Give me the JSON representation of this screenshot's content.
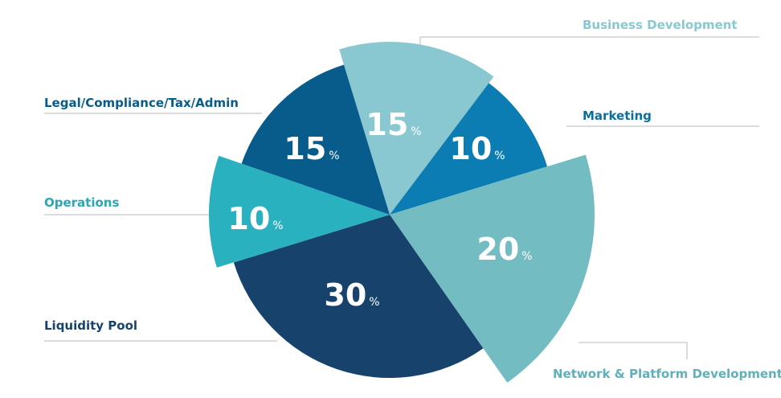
{
  "chart_data": {
    "type": "pie",
    "unit_symbol": "%",
    "slices": [
      {
        "label": "Business Development",
        "value": 15,
        "color": "#89c8d1",
        "label_color": "#89c8d1"
      },
      {
        "label": "Marketing",
        "value": 10,
        "color": "#0c7db3",
        "label_color": "#0c6e9c"
      },
      {
        "label": "Network & Platform Development",
        "value": 20,
        "color": "#72bcc2",
        "label_color": "#5fb0b8"
      },
      {
        "label": "Liquidity Pool",
        "value": 30,
        "color": "#16426b",
        "label_color": "#16426b"
      },
      {
        "label": "Operations",
        "value": 10,
        "color": "#2ab1bf",
        "label_color": "#2aa6b4"
      },
      {
        "label": "Legal/Compliance/Tax/Admin",
        "value": 15,
        "color": "#075c8c",
        "label_color": "#075c8c"
      }
    ]
  }
}
